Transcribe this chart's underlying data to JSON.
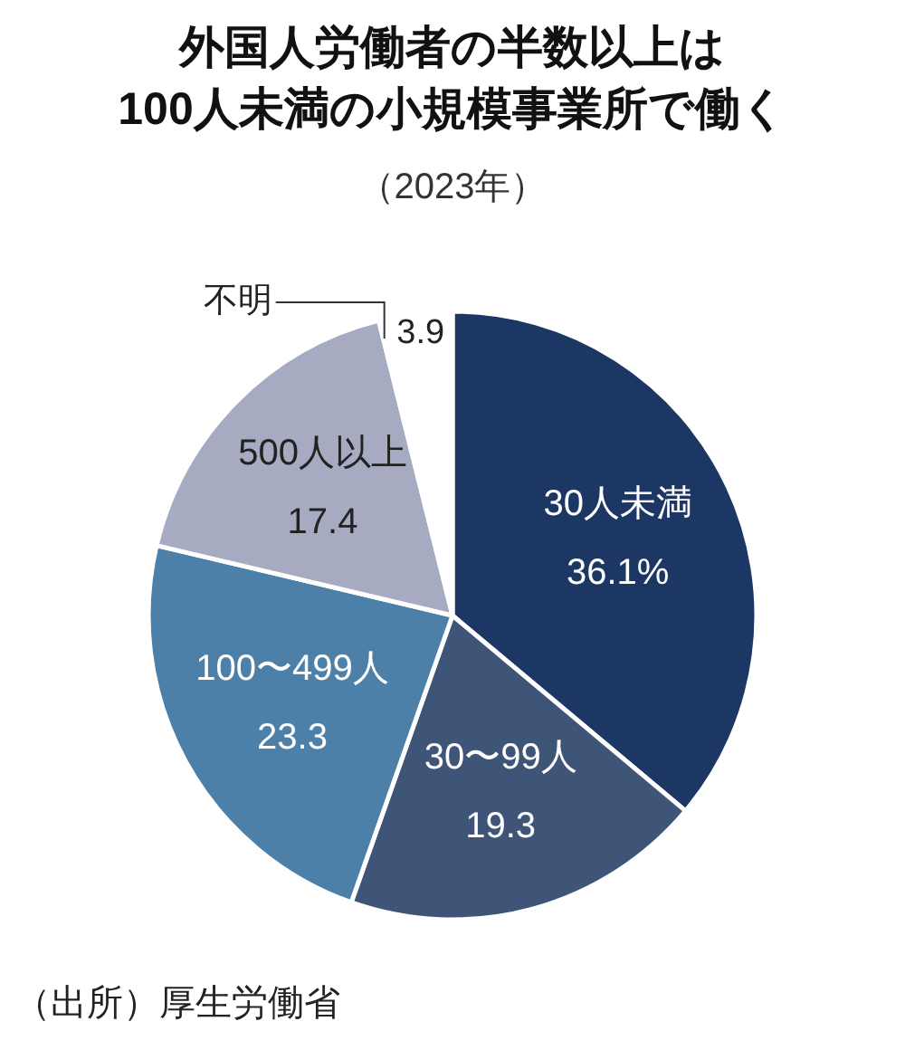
{
  "chart_data": {
    "type": "pie",
    "title": "外国人労働者の半数以上は\n100人未満の小規模事業所で働く",
    "subtitle": "（2023年）",
    "categories": [
      "30人未満",
      "30〜99人",
      "100〜499人",
      "500人以上",
      "不明"
    ],
    "values": [
      36.1,
      19.3,
      23.3,
      17.4,
      3.9
    ],
    "value_labels": [
      "36.1%",
      "19.3",
      "23.3",
      "17.4",
      "3.9"
    ],
    "colors": [
      "#1c3764",
      "#3f5577",
      "#4d80a8",
      "#a7abc2",
      "#ffffff"
    ],
    "annotations": [
      "（出所）厚生労働省"
    ]
  }
}
